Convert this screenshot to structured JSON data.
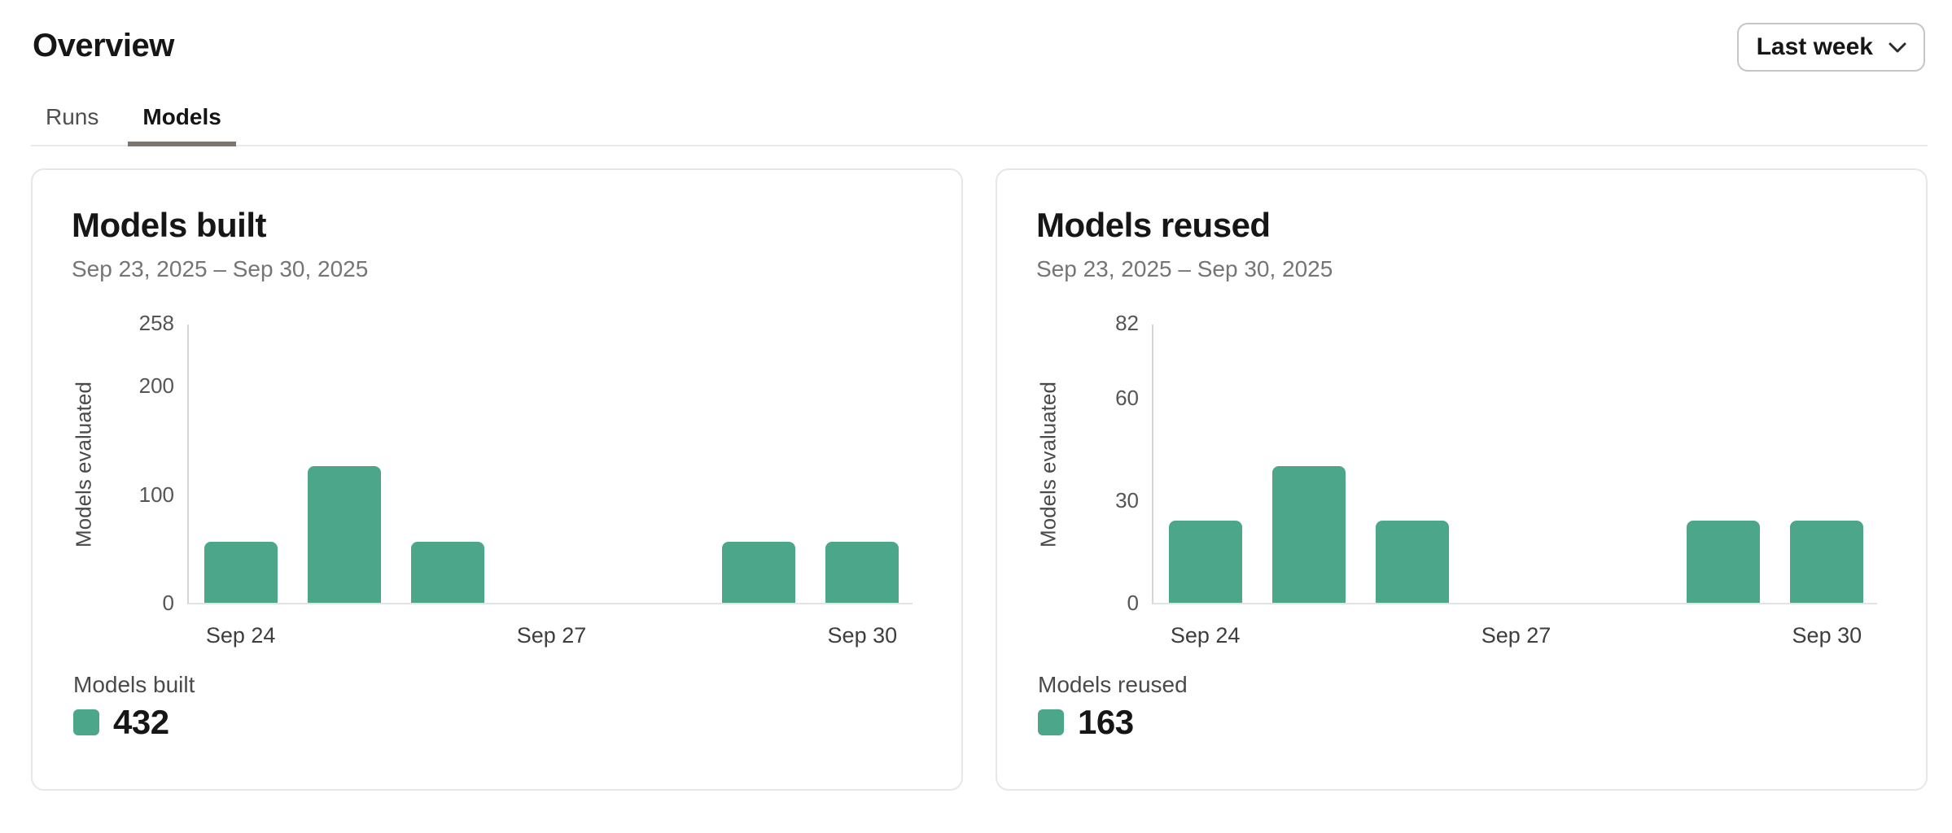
{
  "header": {
    "title": "Overview",
    "range_selector": {
      "label": "Last week",
      "icon": "chevron-down-icon"
    }
  },
  "tabs": [
    {
      "label": "Runs",
      "active": false
    },
    {
      "label": "Models",
      "active": true
    }
  ],
  "colors": {
    "accent_green": "#4CA68A",
    "tab_underline": "#7b766f",
    "card_border": "#e7e7e7"
  },
  "cards": [
    {
      "title": "Models built",
      "date_range": "Sep 23, 2025 – Sep 30, 2025",
      "legend": {
        "label": "Models built",
        "total": "432",
        "swatch_color": "#4CA68A"
      },
      "chart_data": {
        "type": "bar",
        "title": "Models built",
        "ylabel": "Models evaluated",
        "xlabel": "",
        "ylim": [
          0,
          258
        ],
        "yticks": [
          0,
          100,
          200,
          258
        ],
        "grid": false,
        "legend_position": "bottom-left",
        "categories": [
          "Sep 24",
          "Sep 25",
          "Sep 26",
          "Sep 27",
          "Sep 28",
          "Sep 29",
          "Sep 30"
        ],
        "values": [
          56,
          126,
          56,
          0,
          0,
          56,
          56
        ],
        "xticks": [
          {
            "index": 0,
            "label": "Sep 24"
          },
          {
            "index": 3,
            "label": "Sep 27"
          },
          {
            "index": 6,
            "label": "Sep 30"
          }
        ],
        "bar_color": "#4CA68A"
      }
    },
    {
      "title": "Models reused",
      "date_range": "Sep 23, 2025 – Sep 30, 2025",
      "legend": {
        "label": "Models reused",
        "total": "163",
        "swatch_color": "#4CA68A"
      },
      "chart_data": {
        "type": "bar",
        "title": "Models reused",
        "ylabel": "Models evaluated",
        "xlabel": "",
        "ylim": [
          0,
          82
        ],
        "yticks": [
          0,
          30,
          60,
          82
        ],
        "grid": false,
        "legend_position": "bottom-left",
        "categories": [
          "Sep 24",
          "Sep 25",
          "Sep 26",
          "Sep 27",
          "Sep 28",
          "Sep 29",
          "Sep 30"
        ],
        "values": [
          24,
          40,
          24,
          0,
          0,
          24,
          24
        ],
        "xticks": [
          {
            "index": 0,
            "label": "Sep 24"
          },
          {
            "index": 3,
            "label": "Sep 27"
          },
          {
            "index": 6,
            "label": "Sep 30"
          }
        ],
        "bar_color": "#4CA68A"
      }
    }
  ]
}
